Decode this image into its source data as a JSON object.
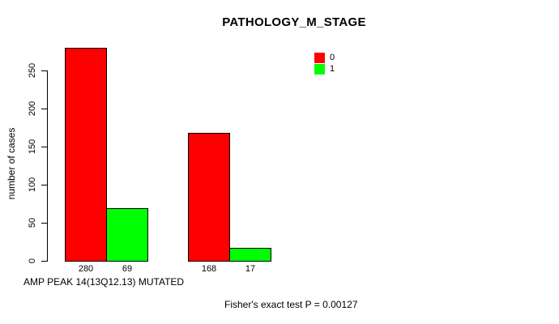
{
  "chart_data": {
    "type": "bar",
    "title": "PATHOLOGY_M_STAGE",
    "ylabel": "number of cases",
    "xlabel": "AMP PEAK 14(13Q12.13) MUTATED",
    "annotation": "Fisher's exact test P = 0.00127",
    "legend_position": "top-right",
    "grid": false,
    "ylim": [
      0,
      280
    ],
    "yticks": [
      0,
      50,
      100,
      150,
      200,
      250
    ],
    "groups": 2,
    "series": [
      {
        "name": "0",
        "color": "#ff0000",
        "values": [
          280,
          168
        ]
      },
      {
        "name": "1",
        "color": "#00ff00",
        "values": [
          69,
          17
        ]
      }
    ],
    "bar_value_labels": [
      [
        "280",
        "69"
      ],
      [
        "168",
        "17"
      ]
    ],
    "colors": {
      "bar_border": "#000000",
      "axis": "#000000",
      "text": "#000000",
      "background": "#ffffff"
    }
  }
}
